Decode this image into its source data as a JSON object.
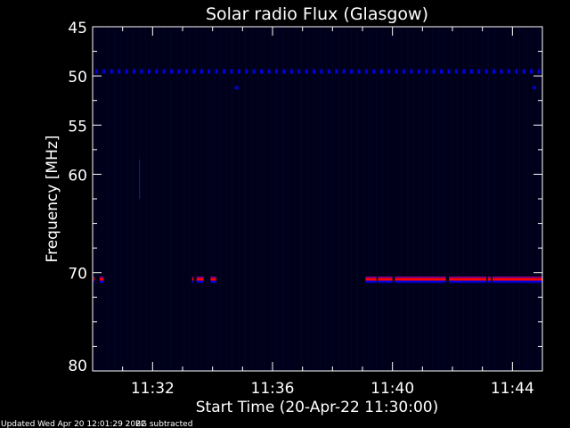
{
  "chart_data": {
    "type": "heatmap",
    "title": "Solar radio Flux (Glasgow)",
    "xlabel": "Start Time (20-Apr-22 11:30:00)",
    "ylabel": "Frequency [MHz]",
    "x_range": [
      "11:30:00",
      "11:45:00"
    ],
    "x_ticks": [
      "11:32",
      "11:36",
      "11:40",
      "11:44"
    ],
    "y_range": [
      45,
      80
    ],
    "y_inverted": true,
    "y_ticks": [
      45,
      50,
      55,
      60,
      70,
      80
    ],
    "y_tick_labels": [
      "45",
      "50",
      "55",
      "60",
      "70",
      "80"
    ],
    "background_color": "#00001a",
    "colors": {
      "low": "#00001a",
      "mid": "#0000ff",
      "high": "#ff0000",
      "edge": "#800080"
    },
    "features": {
      "periodic_dots": {
        "freq_mhz": 49.5,
        "start": "11:30:07",
        "interval_s": 15,
        "color": "#0000e0"
      },
      "spots": [
        {
          "time": "11:34:48",
          "freq_mhz": 51.2
        },
        {
          "time": "11:44:44",
          "freq_mhz": 51.2
        }
      ],
      "streaks": [
        {
          "time": "11:31:33",
          "freq_from": 58.5,
          "freq_to": 62.5
        }
      ],
      "band": {
        "freq_from": 70.4,
        "freq_to": 71.1,
        "segments": [
          [
            "11:30:02",
            "11:30:04"
          ],
          [
            "11:30:14",
            "11:30:22"
          ],
          [
            "11:33:19",
            "11:33:22"
          ],
          [
            "11:33:28",
            "11:33:42"
          ],
          [
            "11:33:56",
            "11:34:07"
          ],
          [
            "11:39:06",
            "11:39:28"
          ],
          [
            "11:39:31",
            "11:40:00"
          ],
          [
            "11:40:05",
            "11:41:47"
          ],
          [
            "11:41:53",
            "11:43:08"
          ],
          [
            "11:43:11",
            "11:43:17"
          ],
          [
            "11:43:20",
            "11:45:00"
          ]
        ]
      }
    }
  },
  "footer": {
    "updated": "Updated Wed Apr 20 12:01:29 2022",
    "bg_note": "BG subtracted"
  }
}
